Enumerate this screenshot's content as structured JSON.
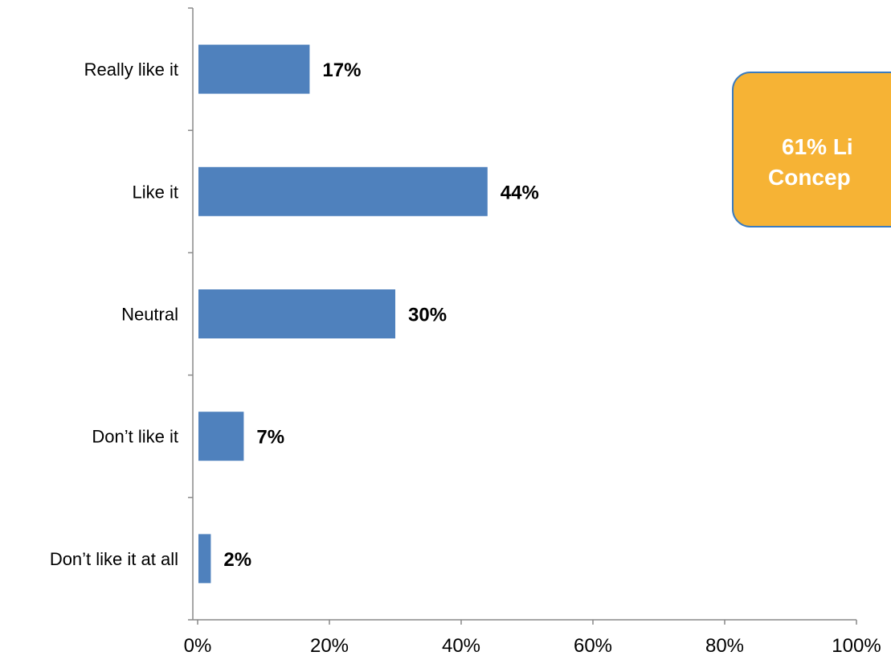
{
  "chart_data": {
    "type": "bar",
    "orientation": "horizontal",
    "categories": [
      "Really like it",
      "Like it",
      "Neutral",
      "Don’t like it",
      "Don’t like it at all"
    ],
    "values": [
      17,
      44,
      30,
      7,
      2
    ],
    "data_labels": [
      "17%",
      "44%",
      "30%",
      "7%",
      "2%"
    ],
    "xlim": [
      0,
      100
    ],
    "x_ticks": [
      0,
      20,
      40,
      60,
      80,
      100
    ],
    "x_tick_labels": [
      "0%",
      "20%",
      "40%",
      "60%",
      "80%",
      "100%"
    ],
    "grid": false,
    "legend": "none",
    "bar_color": "#4F81BD",
    "callout": {
      "lines": [
        "61% Li",
        "Concep"
      ],
      "fill_color": "#F6B335",
      "border_color": "#3A7BBF",
      "text_color": "#FFFFFF"
    }
  }
}
